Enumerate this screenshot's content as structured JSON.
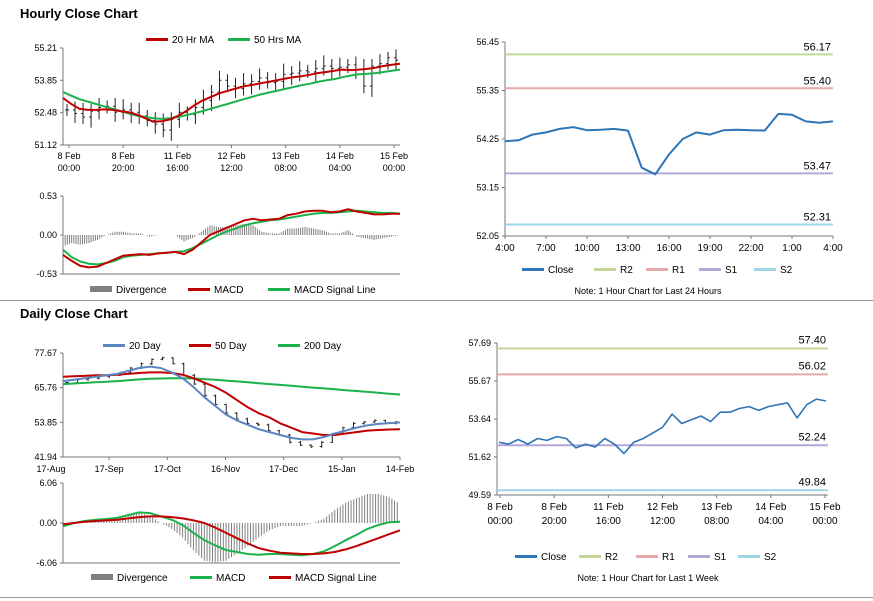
{
  "sections": {
    "hourly_title": "Hourly Close Chart",
    "daily_title": "Daily Close Chart"
  },
  "colors": {
    "red": "#c00000",
    "green": "#1db14b",
    "blue": "#5b86c0",
    "close_blue": "#2e75b6",
    "r2": "#c4d79b",
    "r1": "#e6a9a9",
    "s1": "#b4a7d6",
    "s2": "#9fd4e8",
    "divergence": "#808080"
  },
  "chart_data": [
    {
      "id": "hourly_price",
      "type": "line",
      "legend": [
        "20 Hr MA",
        "50 Hrs MA"
      ],
      "y_ticks": [
        "55.21",
        "53.85",
        "52.48",
        "51.12"
      ],
      "ylim": [
        51.12,
        55.21
      ],
      "x_ticks": [
        [
          "8 Feb",
          "00:00"
        ],
        [
          "8 Feb",
          "20:00"
        ],
        [
          "11 Feb",
          "16:00"
        ],
        [
          "12 Feb",
          "12:00"
        ],
        [
          "13 Feb",
          "08:00"
        ],
        [
          "14 Feb",
          "04:00"
        ],
        [
          "15 Feb",
          "00:00"
        ]
      ],
      "price": [
        52.6,
        52.45,
        52.3,
        52.55,
        52.7,
        52.75,
        52.5,
        52.6,
        52.5,
        52.35,
        52.15,
        52.0,
        51.75,
        52.2,
        52.5,
        52.4,
        52.7,
        53.0,
        53.35,
        53.85,
        53.6,
        53.5,
        53.7,
        53.8,
        53.95,
        53.75,
        53.8,
        54.1,
        54.15,
        54.25,
        54.2,
        54.35,
        54.45,
        54.35,
        54.4,
        54.5,
        54.3,
        53.6,
        54.45,
        54.55,
        54.8,
        54.7
      ],
      "ma20": [
        53.1,
        52.85,
        52.65,
        52.6,
        52.6,
        52.62,
        52.6,
        52.55,
        52.5,
        52.4,
        52.25,
        52.1,
        52.12,
        52.2,
        52.35,
        52.55,
        52.8,
        53.0,
        53.15,
        53.3,
        53.4,
        53.5,
        53.6,
        53.65,
        53.72,
        53.78,
        53.85,
        53.92,
        53.98,
        54.02,
        54.08,
        54.15,
        54.2,
        54.25,
        54.3,
        54.28,
        54.3,
        54.33,
        54.38,
        54.45,
        54.5,
        54.55
      ],
      "ma50": [
        53.35,
        53.2,
        53.05,
        52.95,
        52.85,
        52.75,
        52.65,
        52.55,
        52.45,
        52.35,
        52.3,
        52.25,
        52.22,
        52.25,
        52.3,
        52.38,
        52.46,
        52.55,
        52.65,
        52.75,
        52.85,
        52.95,
        53.05,
        53.15,
        53.25,
        53.33,
        53.4,
        53.48,
        53.56,
        53.64,
        53.7,
        53.78,
        53.85,
        53.9,
        53.98,
        54.05,
        54.1,
        54.12,
        54.15,
        54.2,
        54.25,
        54.3
      ]
    },
    {
      "id": "hourly_macd",
      "type": "line",
      "legend": [
        "Divergence",
        "MACD",
        "MACD Signal Line"
      ],
      "y_ticks": [
        "0.53",
        "0.00",
        "-0.53"
      ],
      "ylim": [
        -0.53,
        0.53
      ],
      "macd": [
        -0.27,
        -0.35,
        -0.42,
        -0.44,
        -0.43,
        -0.38,
        -0.33,
        -0.28,
        -0.27,
        -0.26,
        -0.27,
        -0.25,
        -0.24,
        -0.23,
        -0.26,
        -0.2,
        -0.1,
        0.0,
        0.05,
        0.1,
        0.15,
        0.2,
        0.22,
        0.2,
        0.21,
        0.22,
        0.27,
        0.29,
        0.32,
        0.33,
        0.33,
        0.31,
        0.32,
        0.35,
        0.32,
        0.3,
        0.28,
        0.28,
        0.29,
        0.29
      ],
      "signal": [
        -0.2,
        -0.3,
        -0.36,
        -0.39,
        -0.4,
        -0.38,
        -0.35,
        -0.3,
        -0.28,
        -0.27,
        -0.26,
        -0.25,
        -0.24,
        -0.23,
        -0.22,
        -0.18,
        -0.12,
        -0.06,
        0.0,
        0.05,
        0.09,
        0.13,
        0.16,
        0.18,
        0.2,
        0.21,
        0.23,
        0.25,
        0.27,
        0.29,
        0.3,
        0.3,
        0.31,
        0.32,
        0.33,
        0.32,
        0.31,
        0.3,
        0.3,
        0.29
      ]
    },
    {
      "id": "hourly_pivot",
      "type": "line",
      "legend": [
        "Close",
        "R2",
        "R1",
        "S1",
        "S2"
      ],
      "y_ticks": [
        "56.45",
        "55.35",
        "54.25",
        "53.15",
        "52.05"
      ],
      "ylim": [
        52.05,
        56.45
      ],
      "x_ticks": [
        "4:00",
        "7:00",
        "10:00",
        "13:00",
        "16:00",
        "19:00",
        "22:00",
        "1:00",
        "4:00"
      ],
      "levels": {
        "R2": 56.17,
        "R1": 55.4,
        "S1": 53.47,
        "S2": 52.31
      },
      "close": [
        54.2,
        54.22,
        54.35,
        54.4,
        54.48,
        54.52,
        54.45,
        54.46,
        54.48,
        54.44,
        53.6,
        53.45,
        53.9,
        54.25,
        54.4,
        54.35,
        54.45,
        54.46,
        54.45,
        54.44,
        54.82,
        54.8,
        54.65,
        54.62,
        54.65
      ],
      "note": "Note: 1 Hour Chart for Last 24 Hours"
    },
    {
      "id": "daily_price",
      "type": "line",
      "legend": [
        "20 Day",
        "50 Day",
        "200 Day"
      ],
      "y_ticks": [
        "77.67",
        "65.76",
        "53.85",
        "41.94"
      ],
      "ylim": [
        41.94,
        77.67
      ],
      "x_ticks": [
        "17-Aug",
        "17-Sep",
        "17-Oct",
        "16-Nov",
        "17-Dec",
        "15-Jan",
        "14-Feb"
      ],
      "price": [
        67.5,
        68.5,
        69,
        69.5,
        70,
        71,
        72.5,
        74,
        75.5,
        76,
        74,
        70,
        67,
        63,
        60,
        57,
        55,
        53.5,
        53,
        51,
        49.5,
        47,
        46,
        45.5,
        47,
        50,
        52,
        53.5,
        54,
        54.5,
        53.5,
        54
      ],
      "ma20": [
        68,
        68.5,
        69,
        69.5,
        70,
        70.5,
        71.5,
        72.5,
        73,
        72.5,
        71,
        69,
        66,
        62.5,
        59.5,
        56.5,
        54.5,
        53,
        51.5,
        50.5,
        49.5,
        48.5,
        48,
        48,
        48.8,
        50,
        51,
        52,
        52.8,
        53.3,
        53.6,
        53.8
      ],
      "ma50": [
        69.5,
        69.7,
        69.8,
        70,
        70,
        70.2,
        70.5,
        70.8,
        71,
        71,
        70.8,
        70.2,
        69,
        67.5,
        66,
        64,
        61.5,
        59,
        57,
        55.5,
        53.5,
        52,
        50.5,
        50,
        49.5,
        49.5,
        50,
        50.5,
        51,
        51.2,
        51.4,
        51.5
      ],
      "ma200": [
        67,
        67.2,
        67.4,
        67.6,
        67.8,
        68,
        68.3,
        68.6,
        68.8,
        68.9,
        69,
        69,
        68.9,
        68.7,
        68.5,
        68.2,
        67.9,
        67.6,
        67.3,
        67,
        66.7,
        66.4,
        66.1,
        65.8,
        65.5,
        65.2,
        64.9,
        64.6,
        64.3,
        64,
        63.7,
        63.4
      ]
    },
    {
      "id": "daily_macd",
      "type": "line",
      "legend": [
        "Divergence",
        "MACD",
        "MACD Signal Line"
      ],
      "y_ticks": [
        "6.06",
        "0.00",
        "-6.06"
      ],
      "ylim": [
        -6.06,
        6.06
      ],
      "macd": [
        -0.5,
        0,
        0.3,
        0.5,
        0.6,
        0.8,
        1.2,
        1.6,
        1.5,
        1.0,
        0.5,
        -0.3,
        -1.5,
        -2.6,
        -3.4,
        -4.1,
        -4.4,
        -4.7,
        -4.8,
        -4.7,
        -4.7,
        -4.8,
        -4.9,
        -4.7,
        -4.3,
        -3.5,
        -2.6,
        -1.8,
        -0.9,
        -0.3,
        0.1,
        0.2
      ],
      "signal": [
        -0.2,
        0,
        0.2,
        0.3,
        0.4,
        0.5,
        0.7,
        0.9,
        1.0,
        1.0,
        0.9,
        0.7,
        0.4,
        0.0,
        -0.7,
        -1.5,
        -2.3,
        -3.1,
        -3.8,
        -4.2,
        -4.5,
        -4.6,
        -4.7,
        -4.7,
        -4.6,
        -4.4,
        -4.0,
        -3.5,
        -2.9,
        -2.3,
        -1.7,
        -1.1
      ]
    },
    {
      "id": "daily_pivot",
      "type": "line",
      "legend": [
        "Close",
        "R2",
        "R1",
        "S1",
        "S2"
      ],
      "y_ticks": [
        "57.69",
        "55.67",
        "53.64",
        "51.62",
        "49.59"
      ],
      "ylim": [
        49.59,
        57.69
      ],
      "x_ticks": [
        [
          "8 Feb",
          "00:00"
        ],
        [
          "8 Feb",
          "20:00"
        ],
        [
          "11 Feb",
          "16:00"
        ],
        [
          "12 Feb",
          "12:00"
        ],
        [
          "13 Feb",
          "08:00"
        ],
        [
          "14 Feb",
          "04:00"
        ],
        [
          "15 Feb",
          "00:00"
        ]
      ],
      "levels": {
        "R2": 57.4,
        "R1": 56.02,
        "S1": 52.24,
        "S2": 49.84
      },
      "close": [
        52.4,
        52.3,
        52.55,
        52.3,
        52.6,
        52.5,
        52.7,
        52.6,
        52.1,
        52.3,
        52.15,
        52.6,
        52.3,
        51.8,
        52.4,
        52.6,
        52.9,
        53.2,
        53.9,
        53.4,
        53.6,
        53.8,
        53.5,
        54.0,
        54.0,
        54.2,
        54.3,
        54.1,
        54.3,
        54.4,
        54.5,
        53.7,
        54.4,
        54.7,
        54.6
      ],
      "note": "Note: 1 Hour Chart for Last 1 Week"
    }
  ]
}
